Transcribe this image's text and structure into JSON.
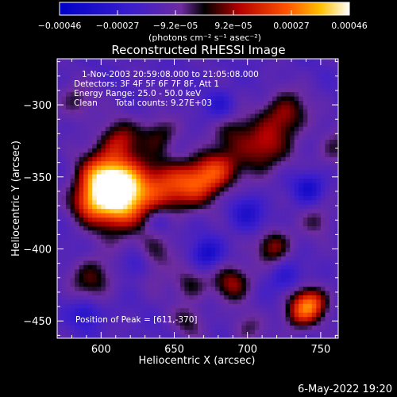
{
  "chart_data": {
    "type": "heatmap",
    "title": "Reconstructed RHESSI Image",
    "xlabel": "Heliocentric X (arcsec)",
    "ylabel": "Heliocentric Y (arcsec)",
    "xlim": [
      570,
      762
    ],
    "ylim": [
      -462,
      -268
    ],
    "x_ticks": [
      600,
      650,
      700,
      750
    ],
    "y_ticks": [
      -300,
      -350,
      -400,
      -450
    ],
    "x_tick_labels": [
      "600",
      "650",
      "700",
      "750"
    ],
    "y_tick_labels": [
      "−300",
      "−350",
      "−400",
      "−450"
    ],
    "colorbar": {
      "min": -0.00046,
      "max": 0.00046,
      "tick_labels": [
        "−0.00046",
        "−0.00027",
        "−9.2e−05",
        "9.2e−05",
        "0.00027",
        "0.00046"
      ],
      "unit_label": "(photons cm⁻² s⁻¹ asec⁻²)"
    },
    "annotations": {
      "time_range": "1-Nov-2003 20:59:08.000 to 21:05:08.000",
      "detectors": "Detectors: 3F 4F 5F 6F 7F 8F, Att 1",
      "energy_range": "Energy Range: 25.0 - 50.0 keV",
      "clean": "Clean",
      "total_counts": "Total counts: 9.27E+03",
      "peak": "Position of Peak = [611,-370]"
    },
    "peak": [
      611,
      -370
    ],
    "blobs": [
      {
        "x": 611,
        "y": -370,
        "amp": 1.0,
        "s": 13
      },
      {
        "x": 616,
        "y": -352,
        "amp": 0.85,
        "s": 12
      },
      {
        "x": 598,
        "y": -350,
        "amp": 0.8,
        "s": 11
      },
      {
        "x": 592,
        "y": -368,
        "amp": 0.55,
        "s": 9
      },
      {
        "x": 643,
        "y": -359,
        "amp": 0.7,
        "s": 13
      },
      {
        "x": 666,
        "y": -353,
        "amp": 0.65,
        "s": 11
      },
      {
        "x": 680,
        "y": -345,
        "amp": 0.6,
        "s": 10
      },
      {
        "x": 710,
        "y": -330,
        "amp": 0.6,
        "s": 12
      },
      {
        "x": 726,
        "y": -306,
        "amp": 0.55,
        "s": 11
      },
      {
        "x": 612,
        "y": -325,
        "amp": 0.55,
        "s": 10
      },
      {
        "x": 640,
        "y": -320,
        "amp": 0.4,
        "s": 9
      },
      {
        "x": 690,
        "y": -318,
        "amp": 0.35,
        "s": 9
      },
      {
        "x": 632,
        "y": -407,
        "amp": 0.5,
        "s": 11
      },
      {
        "x": 594,
        "y": -420,
        "amp": 0.45,
        "s": 10
      },
      {
        "x": 660,
        "y": -425,
        "amp": 0.35,
        "s": 8
      },
      {
        "x": 690,
        "y": -423,
        "amp": 0.55,
        "s": 9
      },
      {
        "x": 718,
        "y": -398,
        "amp": 0.55,
        "s": 8
      },
      {
        "x": 744,
        "y": -437,
        "amp": 0.75,
        "s": 8
      },
      {
        "x": 735,
        "y": -445,
        "amp": 0.55,
        "s": 8
      },
      {
        "x": 582,
        "y": -298,
        "amp": 0.3,
        "s": 9
      },
      {
        "x": 748,
        "y": -380,
        "amp": 0.3,
        "s": 8
      },
      {
        "x": 660,
        "y": -450,
        "amp": 0.3,
        "s": 8
      },
      {
        "x": 700,
        "y": -455,
        "amp": 0.25,
        "s": 8
      },
      {
        "x": 760,
        "y": -330,
        "amp": 0.3,
        "s": 9
      }
    ],
    "lows": [
      {
        "x": 625,
        "y": -410,
        "amp": 0.55,
        "s": 8
      },
      {
        "x": 672,
        "y": -403,
        "amp": 0.45,
        "s": 7
      },
      {
        "x": 742,
        "y": -357,
        "amp": 0.45,
        "s": 7
      },
      {
        "x": 640,
        "y": -380,
        "amp": 0.3,
        "s": 7
      },
      {
        "x": 700,
        "y": -375,
        "amp": 0.35,
        "s": 8
      },
      {
        "x": 725,
        "y": -420,
        "amp": 0.3,
        "s": 7
      },
      {
        "x": 590,
        "y": -445,
        "amp": 0.35,
        "s": 7
      },
      {
        "x": 682,
        "y": -300,
        "amp": 0.3,
        "s": 7
      }
    ]
  },
  "footer": {
    "date": "6-May-2022 19:20"
  }
}
